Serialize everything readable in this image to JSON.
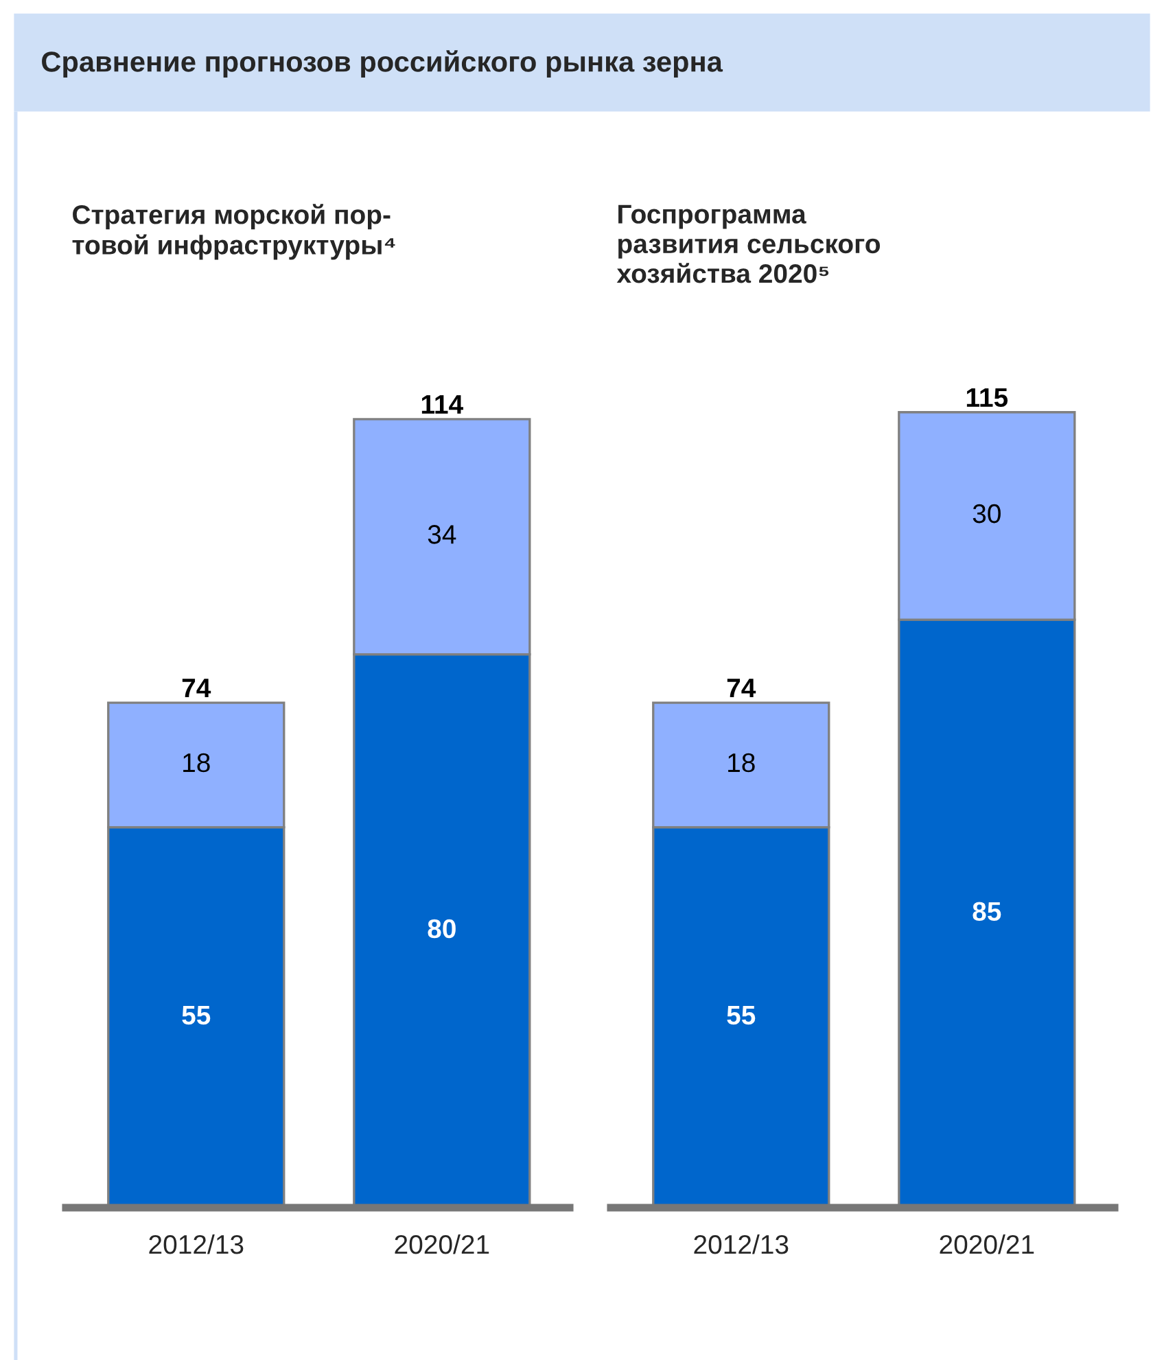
{
  "chart_data": [
    {
      "type": "bar",
      "title": "Сравнение прогнозов российского рынка зерна",
      "subtitle": "Стратегия морской пор-\nтовой инфраструктуры⁴",
      "categories": [
        "2012/13",
        "2020/21"
      ],
      "stacked": true,
      "data_labels": true,
      "totals": [
        "74",
        "114"
      ],
      "series": [
        {
          "color": "#0066cc",
          "values": [
            55,
            80
          ]
        },
        {
          "color": "#8fb0ff",
          "values": [
            18,
            34
          ]
        }
      ]
    },
    {
      "type": "bar",
      "subtitle": "Госпрограмма\nразвития сельского\nхозяйства 2020⁵",
      "categories": [
        "2012/13",
        "2020/21"
      ],
      "stacked": true,
      "data_labels": true,
      "totals": [
        "74",
        "115"
      ],
      "series": [
        {
          "color": "#0066cc",
          "values": [
            55,
            85
          ]
        },
        {
          "color": "#8fb0ff",
          "values": [
            18,
            30
          ]
        }
      ]
    }
  ]
}
